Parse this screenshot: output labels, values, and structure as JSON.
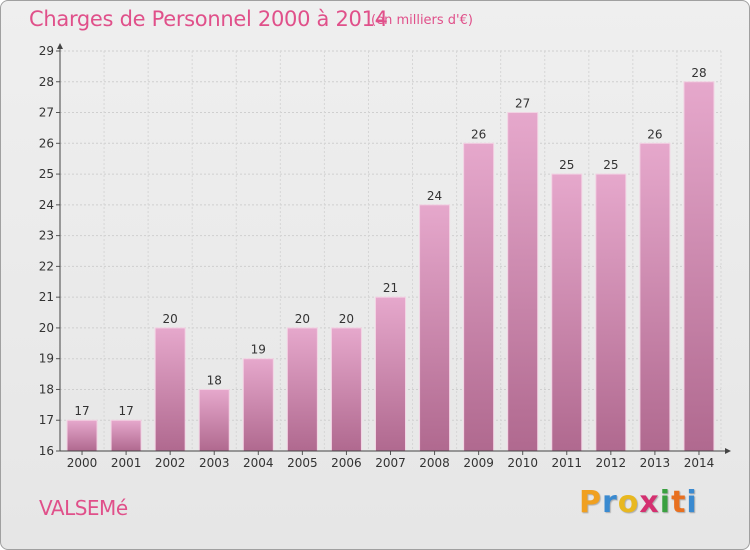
{
  "chart_data": {
    "type": "bar",
    "title": "Charges de Personnel 2000 à 2014",
    "subtitle": "(en milliers d'€)",
    "categories": [
      "2000",
      "2001",
      "2002",
      "2003",
      "2004",
      "2005",
      "2006",
      "2007",
      "2008",
      "2009",
      "2010",
      "2011",
      "2012",
      "2013",
      "2014"
    ],
    "values": [
      17,
      17,
      20,
      18,
      19,
      20,
      20,
      21,
      24,
      26,
      27,
      25,
      25,
      26,
      28
    ],
    "ylim": [
      16,
      29
    ],
    "yticks": [
      16,
      17,
      18,
      19,
      20,
      21,
      22,
      23,
      24,
      25,
      26,
      27,
      28,
      29
    ],
    "grid": true,
    "bar_color_top": "#e6a8cc",
    "bar_color_bottom": "#b0698f"
  },
  "commune": "VALSEMé",
  "logo": {
    "letters": [
      "P",
      "r",
      "o",
      "x",
      "i",
      "t",
      "i"
    ],
    "colors": [
      "#f0a020",
      "#3a8ad0",
      "#e8b820",
      "#d43070",
      "#3aa040",
      "#e87020",
      "#3a8ad0"
    ]
  }
}
